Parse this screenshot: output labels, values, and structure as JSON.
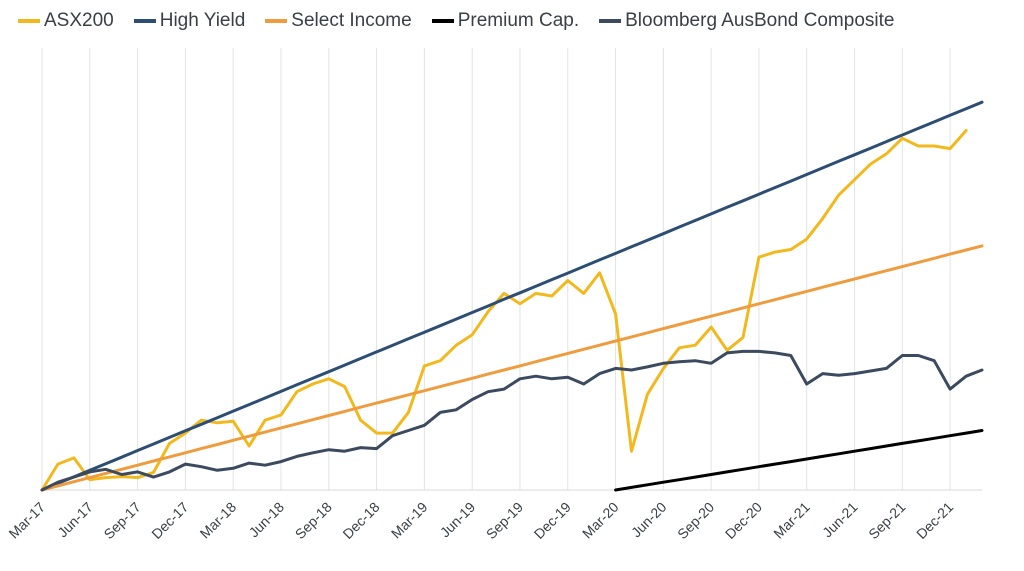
{
  "chart_data": {
    "type": "line",
    "x_ticks": [
      "Mar-17",
      "Jun-17",
      "Sep-17",
      "Dec-17",
      "Mar-18",
      "Jun-18",
      "Sep-18",
      "Dec-18",
      "Mar-19",
      "Jun-19",
      "Sep-19",
      "Dec-19",
      "Mar-20",
      "Jun-20",
      "Sep-20",
      "Dec-20",
      "Mar-21",
      "Jun-21",
      "Sep-21",
      "Dec-21"
    ],
    "x_unit": "month",
    "x_start": "Mar-17",
    "x_end": "Feb-22",
    "grid": "vertical",
    "yaxis_visible": false,
    "ylim": [
      -2,
      85
    ],
    "legend_position": "top",
    "series": [
      {
        "name": "ASX200",
        "color": "#f2b91e",
        "start": "Mar-17",
        "values": [
          0,
          5,
          6.2,
          2,
          2.4,
          2.6,
          2.4,
          3.4,
          9,
          11,
          13.5,
          13,
          13.3,
          8.5,
          13.5,
          14.5,
          19,
          20.5,
          21.5,
          20,
          13.5,
          11,
          11,
          15,
          24,
          25,
          28,
          30,
          34.5,
          38,
          36,
          38,
          37.5,
          40.5,
          38,
          42,
          34,
          7.5,
          18.5,
          23.5,
          27.5,
          28,
          31.5,
          27,
          29.5,
          45,
          46,
          46.5,
          48.5,
          52.5,
          57,
          60,
          63,
          65,
          68,
          66.5,
          66.5,
          66,
          69.5
        ]
      },
      {
        "name": "High Yield",
        "color": "#2d4e74",
        "start": "Mar-17",
        "values": [
          0,
          1.27,
          2.54,
          3.81,
          5.08,
          6.35,
          7.63,
          8.9,
          10.17,
          11.44,
          12.71,
          13.98,
          15.25,
          16.52,
          17.79,
          19.06,
          20.33,
          21.61,
          22.88,
          24.15,
          25.42,
          26.69,
          27.96,
          29.23,
          30.5,
          31.77,
          33.04,
          34.31,
          35.58,
          36.86,
          38.13,
          39.4,
          40.67,
          41.94,
          43.21,
          44.48,
          45.75,
          47.02,
          48.29,
          49.56,
          50.84,
          52.11,
          53.38,
          54.65,
          55.92,
          57.19,
          58.46,
          59.73,
          61,
          62.27,
          63.54,
          64.81,
          66.09,
          67.36,
          68.63,
          69.9,
          71.17,
          72.44,
          73.71,
          74.98
        ]
      },
      {
        "name": "Select Income",
        "color": "#ef9c3f",
        "start": "Mar-17",
        "values": [
          0,
          0.8,
          1.6,
          2.4,
          3.2,
          4,
          4.8,
          5.6,
          6.4,
          7.2,
          8,
          8.8,
          9.6,
          10.4,
          11.2,
          12,
          12.8,
          13.6,
          14.4,
          15.2,
          16,
          16.8,
          17.6,
          18.4,
          19.2,
          20,
          20.8,
          21.6,
          22.4,
          23.2,
          24,
          24.8,
          25.6,
          26.4,
          27.2,
          28,
          28.8,
          29.6,
          30.4,
          31.2,
          32,
          32.8,
          33.6,
          34.4,
          35.2,
          36,
          36.8,
          37.6,
          38.4,
          39.2,
          40,
          40.8,
          41.6,
          42.4,
          43.2,
          44,
          44.8,
          45.6,
          46.4,
          47.2
        ]
      },
      {
        "name": "Premium Cap.",
        "color": "#000000",
        "start": "Mar-20",
        "values": [
          0,
          0.5,
          1,
          1.5,
          2,
          2.5,
          3,
          3.5,
          4,
          4.5,
          5,
          5.5,
          6,
          6.5,
          7,
          7.5,
          8,
          8.5,
          9,
          9.5,
          10,
          10.5,
          11,
          11.5
        ]
      },
      {
        "name": "Bloomberg AusBond Composite",
        "color": "#3b4a5e",
        "start": "Mar-17",
        "values": [
          0,
          1.5,
          2.5,
          3.5,
          4,
          3,
          3.5,
          2.5,
          3.5,
          5,
          4.5,
          3.8,
          4.2,
          5.2,
          4.8,
          5.5,
          6.5,
          7.2,
          7.8,
          7.5,
          8.2,
          8,
          10.5,
          11.5,
          12.5,
          15,
          15.5,
          17.5,
          19,
          19.5,
          21.5,
          22,
          21.5,
          21.8,
          20.5,
          22.5,
          23.5,
          23.2,
          23.8,
          24.5,
          24.8,
          25,
          24.5,
          26.5,
          26.8,
          26.8,
          26.5,
          26,
          20.5,
          22.5,
          22.2,
          22.5,
          23,
          23.5,
          26,
          26,
          25,
          19.5,
          22,
          23.2
        ]
      }
    ]
  }
}
